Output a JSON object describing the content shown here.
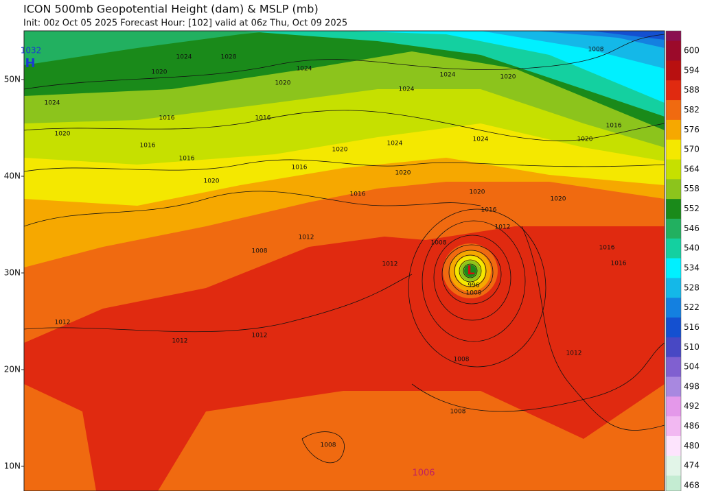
{
  "header": {
    "title": "ICON 500mb Geopotential Height (dam) & MSLP (mb)",
    "subtitle": "Init: 00z Oct 05 2025   Forecast Hour: [102]   valid at 06z Thu, Oct 09 2025"
  },
  "latitudes": [
    "50N",
    "40N",
    "30N",
    "20N",
    "10N"
  ],
  "colorbar": {
    "ticks": [
      600,
      594,
      588,
      582,
      576,
      570,
      564,
      558,
      552,
      546,
      540,
      534,
      528,
      522,
      516,
      510,
      504,
      498,
      492,
      486,
      480,
      474,
      468
    ],
    "colors": [
      "#9b0a2a",
      "#b81010",
      "#e02a10",
      "#f06a10",
      "#f6a800",
      "#f4e800",
      "#c6e000",
      "#8cc41c",
      "#1a8a1a",
      "#22b060",
      "#14d0a0",
      "#00f0ff",
      "#14b8e8",
      "#1480e0",
      "#1450d0",
      "#4848c4",
      "#8060d0",
      "#a888e0",
      "#e498ea",
      "#f2b8f2",
      "#fde4fd",
      "#e2f5e8",
      "#c4ecd2"
    ]
  },
  "contour_labels": [
    "1032",
    "H",
    "1024",
    "1028",
    "1020",
    "1024",
    "1020",
    "1024",
    "1024",
    "1020",
    "1008",
    "1016",
    "1016",
    "1024",
    "1020",
    "1016",
    "1020",
    "1024",
    "1024",
    "1020",
    "1016",
    "1016",
    "1016",
    "1020",
    "1020",
    "1016",
    "1020",
    "1016",
    "1020",
    "1012",
    "1012",
    "1008",
    "1016",
    "1016",
    "1012",
    "1008",
    "996",
    "1000",
    "L",
    "1012",
    "1012",
    "1012",
    "1008",
    "1012",
    "1008",
    "1008",
    "1006"
  ]
}
